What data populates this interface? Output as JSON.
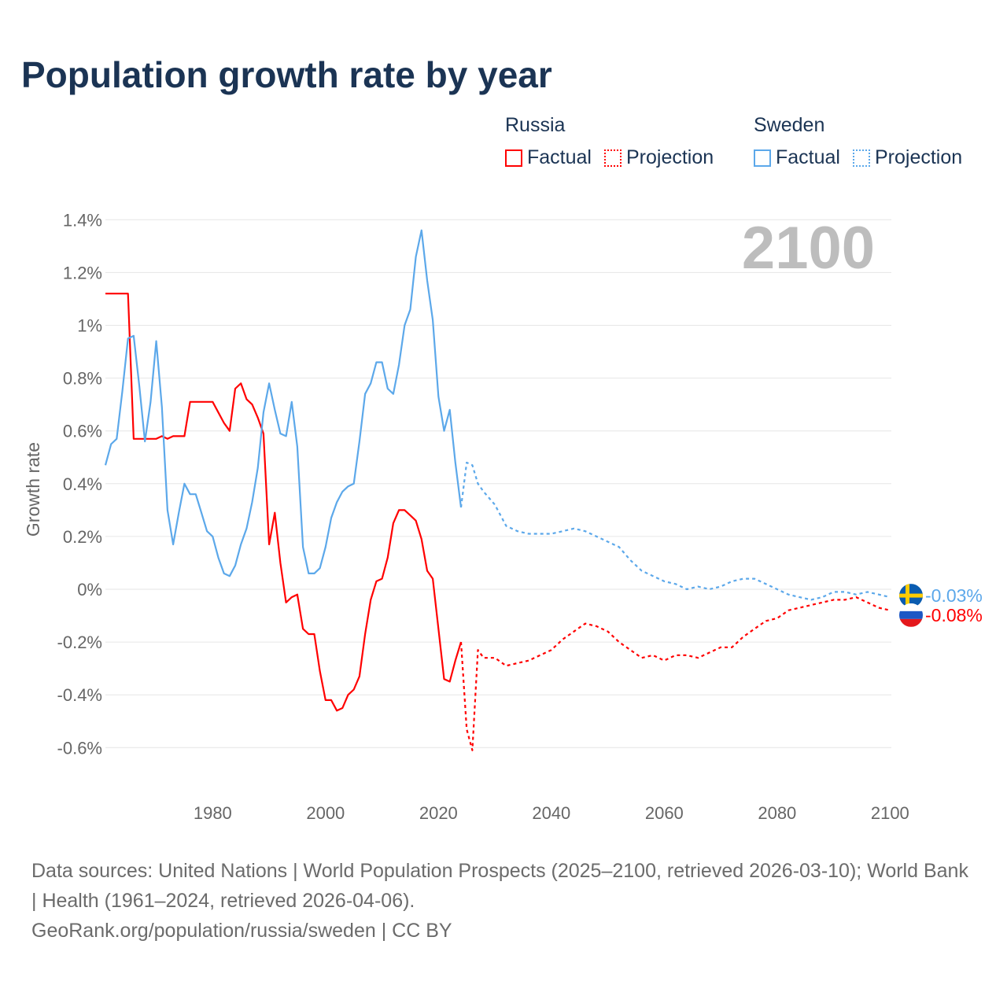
{
  "chart_data": {
    "type": "line",
    "title": "Population growth rate by year",
    "ylabel": "Growth rate",
    "xlabel": "",
    "xlim": [
      1961,
      2100
    ],
    "ylim": [
      -0.7,
      1.45
    ],
    "yticks": [
      1.4,
      1.2,
      1.0,
      0.8,
      0.6,
      0.4,
      0.2,
      0,
      -0.2,
      -0.4,
      -0.6
    ],
    "ytick_labels": [
      "1.4%",
      "1.2%",
      "1%",
      "0.8%",
      "0.6%",
      "0.4%",
      "0.2%",
      "0%",
      "-0.2%",
      "-0.4%",
      "-0.6%"
    ],
    "xticks": [
      1980,
      2000,
      2020,
      2040,
      2060,
      2080,
      2100
    ],
    "xtick_labels": [
      "1980",
      "2000",
      "2020",
      "2040",
      "2060",
      "2080",
      "2100"
    ],
    "grid": true,
    "current_year": "2100",
    "legend": {
      "groups": [
        {
          "name": "Russia",
          "factual": "Factual",
          "projection": "Projection"
        },
        {
          "name": "Sweden",
          "factual": "Factual",
          "projection": "Projection"
        }
      ],
      "placement": "top-right"
    },
    "series": [
      {
        "name": "Russia",
        "kind": "Factual",
        "color": "#ff0000",
        "x": [
          1961,
          1962,
          1963,
          1964,
          1965,
          1966,
          1967,
          1968,
          1969,
          1970,
          1971,
          1972,
          1973,
          1974,
          1975,
          1976,
          1977,
          1978,
          1979,
          1980,
          1981,
          1982,
          1983,
          1984,
          1985,
          1986,
          1987,
          1988,
          1989,
          1990,
          1991,
          1992,
          1993,
          1994,
          1995,
          1996,
          1997,
          1998,
          1999,
          2000,
          2001,
          2002,
          2003,
          2004,
          2005,
          2006,
          2007,
          2008,
          2009,
          2010,
          2011,
          2012,
          2013,
          2014,
          2015,
          2016,
          2017,
          2018,
          2019,
          2020,
          2021,
          2022,
          2023,
          2024
        ],
        "y": [
          1.12,
          1.12,
          1.12,
          1.12,
          1.12,
          0.57,
          0.57,
          0.57,
          0.57,
          0.57,
          0.58,
          0.57,
          0.58,
          0.58,
          0.58,
          0.71,
          0.71,
          0.71,
          0.71,
          0.71,
          0.67,
          0.63,
          0.6,
          0.76,
          0.78,
          0.72,
          0.7,
          0.65,
          0.59,
          0.17,
          0.29,
          0.1,
          -0.05,
          -0.03,
          -0.02,
          -0.15,
          -0.17,
          -0.17,
          -0.31,
          -0.42,
          -0.42,
          -0.46,
          -0.45,
          -0.4,
          -0.38,
          -0.33,
          -0.17,
          -0.04,
          0.03,
          0.04,
          0.12,
          0.25,
          0.3,
          0.3,
          0.28,
          0.26,
          0.19,
          0.07,
          0.04,
          -0.15,
          -0.34,
          -0.35,
          -0.27,
          -0.2
        ]
      },
      {
        "name": "Russia",
        "kind": "Projection",
        "color": "#ff0000",
        "x": [
          2024,
          2025,
          2026,
          2027,
          2028,
          2030,
          2032,
          2034,
          2036,
          2038,
          2040,
          2042,
          2044,
          2046,
          2048,
          2050,
          2052,
          2054,
          2056,
          2058,
          2060,
          2062,
          2064,
          2066,
          2068,
          2070,
          2072,
          2074,
          2076,
          2078,
          2080,
          2082,
          2084,
          2086,
          2088,
          2090,
          2092,
          2094,
          2096,
          2098,
          2100
        ],
        "y": [
          -0.2,
          -0.53,
          -0.61,
          -0.23,
          -0.26,
          -0.26,
          -0.29,
          -0.28,
          -0.27,
          -0.25,
          -0.23,
          -0.19,
          -0.16,
          -0.13,
          -0.14,
          -0.16,
          -0.2,
          -0.23,
          -0.26,
          -0.25,
          -0.27,
          -0.25,
          -0.25,
          -0.26,
          -0.24,
          -0.22,
          -0.22,
          -0.18,
          -0.15,
          -0.12,
          -0.11,
          -0.08,
          -0.07,
          -0.06,
          -0.05,
          -0.04,
          -0.04,
          -0.03,
          -0.05,
          -0.07,
          -0.08
        ]
      },
      {
        "name": "Sweden",
        "kind": "Factual",
        "color": "#5ca8ea",
        "x": [
          1961,
          1962,
          1963,
          1964,
          1965,
          1966,
          1967,
          1968,
          1969,
          1970,
          1971,
          1972,
          1973,
          1974,
          1975,
          1976,
          1977,
          1978,
          1979,
          1980,
          1981,
          1982,
          1983,
          1984,
          1985,
          1986,
          1987,
          1988,
          1989,
          1990,
          1991,
          1992,
          1993,
          1994,
          1995,
          1996,
          1997,
          1998,
          1999,
          2000,
          2001,
          2002,
          2003,
          2004,
          2005,
          2006,
          2007,
          2008,
          2009,
          2010,
          2011,
          2012,
          2013,
          2014,
          2015,
          2016,
          2017,
          2018,
          2019,
          2020,
          2021,
          2022,
          2023,
          2024
        ],
        "y": [
          0.47,
          0.55,
          0.57,
          0.75,
          0.95,
          0.96,
          0.77,
          0.56,
          0.71,
          0.94,
          0.69,
          0.3,
          0.17,
          0.29,
          0.4,
          0.36,
          0.36,
          0.29,
          0.22,
          0.2,
          0.12,
          0.06,
          0.05,
          0.09,
          0.17,
          0.23,
          0.33,
          0.46,
          0.67,
          0.78,
          0.68,
          0.59,
          0.58,
          0.71,
          0.54,
          0.16,
          0.06,
          0.06,
          0.08,
          0.16,
          0.27,
          0.33,
          0.37,
          0.39,
          0.4,
          0.56,
          0.74,
          0.78,
          0.86,
          0.86,
          0.76,
          0.74,
          0.85,
          1.0,
          1.06,
          1.26,
          1.36,
          1.17,
          1.02,
          0.73,
          0.6,
          0.68,
          0.48,
          0.31
        ]
      },
      {
        "name": "Sweden",
        "kind": "Projection",
        "color": "#5ca8ea",
        "x": [
          2024,
          2025,
          2026,
          2027,
          2028,
          2030,
          2032,
          2034,
          2036,
          2038,
          2040,
          2042,
          2044,
          2046,
          2048,
          2050,
          2052,
          2054,
          2056,
          2058,
          2060,
          2062,
          2064,
          2066,
          2068,
          2070,
          2072,
          2074,
          2076,
          2078,
          2080,
          2082,
          2084,
          2086,
          2088,
          2090,
          2092,
          2094,
          2096,
          2098,
          2100
        ],
        "y": [
          0.31,
          0.48,
          0.47,
          0.4,
          0.37,
          0.32,
          0.24,
          0.22,
          0.21,
          0.21,
          0.21,
          0.22,
          0.23,
          0.22,
          0.2,
          0.18,
          0.16,
          0.11,
          0.07,
          0.05,
          0.03,
          0.02,
          0.0,
          0.01,
          0.0,
          0.01,
          0.03,
          0.04,
          0.04,
          0.02,
          0.0,
          -0.02,
          -0.03,
          -0.04,
          -0.03,
          -0.01,
          -0.01,
          -0.02,
          -0.01,
          -0.02,
          -0.03
        ]
      }
    ],
    "end_labels": [
      {
        "country": "Sweden",
        "flag": "sweden-flag",
        "value": -0.03,
        "label": "-0.03%",
        "color": "#5ca8ea"
      },
      {
        "country": "Russia",
        "flag": "russia-flag",
        "value": -0.08,
        "label": "-0.08%",
        "color": "#ff0000"
      }
    ]
  },
  "footer": {
    "sources": "Data sources: United Nations | World Population Prospects (2025–2100, retrieved 2026-03-10); World Bank | Health (1961–2024, retrieved 2026-04-06).",
    "credit": "GeoRank.org/population/russia/sweden | CC BY"
  }
}
